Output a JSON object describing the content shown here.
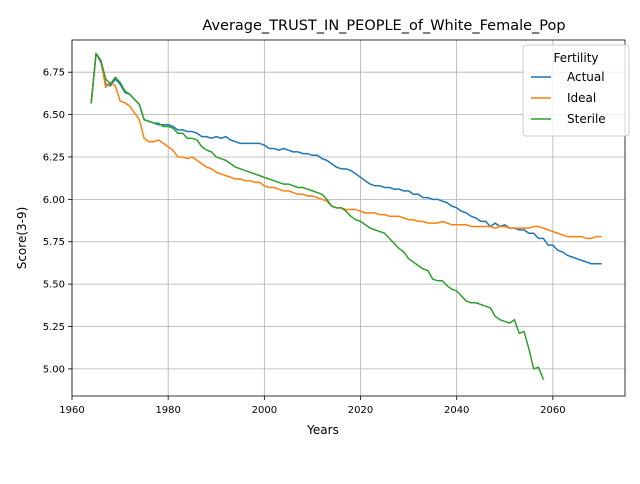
{
  "chart_data": {
    "type": "line",
    "title": "Average_TRUST_IN_PEOPLE_of_White_Female_Pop",
    "xlabel": "Years",
    "ylabel": "Score(3-9)",
    "xlim": [
      1960,
      2075
    ],
    "ylim": [
      4.84,
      6.94
    ],
    "xticks": [
      1960,
      1980,
      2000,
      2020,
      2040,
      2060
    ],
    "yticks": [
      5.0,
      5.25,
      5.5,
      5.75,
      6.0,
      6.25,
      6.5,
      6.75
    ],
    "xtick_labels": [
      "1960",
      "1980",
      "2000",
      "2020",
      "2040",
      "2060"
    ],
    "ytick_labels": [
      "5.00",
      "5.25",
      "5.50",
      "5.75",
      "6.00",
      "6.25",
      "6.50",
      "6.75"
    ],
    "grid": true,
    "legend": {
      "title": "Fertility",
      "position": "top-right"
    },
    "series": [
      {
        "name": "Actual",
        "color": "#1f77b4",
        "points": [
          [
            1964,
            6.57
          ],
          [
            1965,
            6.86
          ],
          [
            1966,
            6.81
          ],
          [
            1967,
            6.68
          ],
          [
            1968,
            6.67
          ],
          [
            1969,
            6.71
          ],
          [
            1970,
            6.68
          ],
          [
            1971,
            6.63
          ],
          [
            1972,
            6.62
          ],
          [
            1973,
            6.59
          ],
          [
            1974,
            6.56
          ],
          [
            1975,
            6.47
          ],
          [
            1976,
            6.46
          ],
          [
            1977,
            6.45
          ],
          [
            1978,
            6.44
          ],
          [
            1979,
            6.44
          ],
          [
            1980,
            6.44
          ],
          [
            1981,
            6.43
          ],
          [
            1982,
            6.41
          ],
          [
            1983,
            6.41
          ],
          [
            1984,
            6.4
          ],
          [
            1985,
            6.4
          ],
          [
            1986,
            6.39
          ],
          [
            1987,
            6.37
          ],
          [
            1988,
            6.37
          ],
          [
            1989,
            6.36
          ],
          [
            1990,
            6.37
          ],
          [
            1991,
            6.36
          ],
          [
            1992,
            6.37
          ],
          [
            1993,
            6.35
          ],
          [
            1994,
            6.34
          ],
          [
            1995,
            6.33
          ],
          [
            1996,
            6.33
          ],
          [
            1997,
            6.33
          ],
          [
            1998,
            6.33
          ],
          [
            1999,
            6.33
          ],
          [
            2000,
            6.32
          ],
          [
            2001,
            6.3
          ],
          [
            2002,
            6.3
          ],
          [
            2003,
            6.29
          ],
          [
            2004,
            6.3
          ],
          [
            2005,
            6.29
          ],
          [
            2006,
            6.28
          ],
          [
            2007,
            6.28
          ],
          [
            2008,
            6.27
          ],
          [
            2009,
            6.27
          ],
          [
            2010,
            6.26
          ],
          [
            2011,
            6.26
          ],
          [
            2012,
            6.24
          ],
          [
            2013,
            6.23
          ],
          [
            2014,
            6.21
          ],
          [
            2015,
            6.19
          ],
          [
            2016,
            6.18
          ],
          [
            2017,
            6.18
          ],
          [
            2018,
            6.17
          ],
          [
            2019,
            6.15
          ],
          [
            2020,
            6.13
          ],
          [
            2021,
            6.11
          ],
          [
            2022,
            6.09
          ],
          [
            2023,
            6.08
          ],
          [
            2024,
            6.08
          ],
          [
            2025,
            6.07
          ],
          [
            2026,
            6.07
          ],
          [
            2027,
            6.06
          ],
          [
            2028,
            6.06
          ],
          [
            2029,
            6.05
          ],
          [
            2030,
            6.05
          ],
          [
            2031,
            6.03
          ],
          [
            2032,
            6.03
          ],
          [
            2033,
            6.01
          ],
          [
            2034,
            6.01
          ],
          [
            2035,
            6.0
          ],
          [
            2036,
            6.0
          ],
          [
            2037,
            5.99
          ],
          [
            2038,
            5.98
          ],
          [
            2039,
            5.96
          ],
          [
            2040,
            5.95
          ],
          [
            2041,
            5.93
          ],
          [
            2042,
            5.92
          ],
          [
            2043,
            5.9
          ],
          [
            2044,
            5.89
          ],
          [
            2045,
            5.87
          ],
          [
            2046,
            5.87
          ],
          [
            2047,
            5.84
          ],
          [
            2048,
            5.86
          ],
          [
            2049,
            5.84
          ],
          [
            2050,
            5.85
          ],
          [
            2051,
            5.83
          ],
          [
            2052,
            5.83
          ],
          [
            2053,
            5.82
          ],
          [
            2054,
            5.82
          ],
          [
            2055,
            5.8
          ],
          [
            2056,
            5.8
          ],
          [
            2057,
            5.77
          ],
          [
            2058,
            5.77
          ],
          [
            2059,
            5.73
          ],
          [
            2060,
            5.73
          ],
          [
            2061,
            5.7
          ],
          [
            2062,
            5.69
          ],
          [
            2063,
            5.67
          ],
          [
            2064,
            5.66
          ],
          [
            2065,
            5.65
          ],
          [
            2066,
            5.64
          ],
          [
            2067,
            5.63
          ],
          [
            2068,
            5.62
          ],
          [
            2069,
            5.62
          ],
          [
            2070,
            5.62
          ]
        ]
      },
      {
        "name": "Ideal",
        "color": "#ff7f0e",
        "points": [
          [
            1964,
            6.57
          ],
          [
            1965,
            6.86
          ],
          [
            1966,
            6.82
          ],
          [
            1967,
            6.66
          ],
          [
            1968,
            6.69
          ],
          [
            1969,
            6.67
          ],
          [
            1970,
            6.58
          ],
          [
            1971,
            6.57
          ],
          [
            1972,
            6.55
          ],
          [
            1973,
            6.51
          ],
          [
            1974,
            6.47
          ],
          [
            1975,
            6.36
          ],
          [
            1976,
            6.34
          ],
          [
            1977,
            6.34
          ],
          [
            1978,
            6.35
          ],
          [
            1979,
            6.33
          ],
          [
            1980,
            6.31
          ],
          [
            1981,
            6.29
          ],
          [
            1982,
            6.25
          ],
          [
            1983,
            6.25
          ],
          [
            1984,
            6.24
          ],
          [
            1985,
            6.25
          ],
          [
            1986,
            6.23
          ],
          [
            1987,
            6.21
          ],
          [
            1988,
            6.19
          ],
          [
            1989,
            6.18
          ],
          [
            1990,
            6.16
          ],
          [
            1991,
            6.15
          ],
          [
            1992,
            6.14
          ],
          [
            1993,
            6.13
          ],
          [
            1994,
            6.12
          ],
          [
            1995,
            6.12
          ],
          [
            1996,
            6.11
          ],
          [
            1997,
            6.11
          ],
          [
            1998,
            6.1
          ],
          [
            1999,
            6.1
          ],
          [
            2000,
            6.08
          ],
          [
            2001,
            6.07
          ],
          [
            2002,
            6.07
          ],
          [
            2003,
            6.06
          ],
          [
            2004,
            6.05
          ],
          [
            2005,
            6.05
          ],
          [
            2006,
            6.04
          ],
          [
            2007,
            6.03
          ],
          [
            2008,
            6.03
          ],
          [
            2009,
            6.02
          ],
          [
            2010,
            6.02
          ],
          [
            2011,
            6.01
          ],
          [
            2012,
            6.0
          ],
          [
            2013,
            5.99
          ],
          [
            2014,
            5.96
          ],
          [
            2015,
            5.95
          ],
          [
            2016,
            5.95
          ],
          [
            2017,
            5.94
          ],
          [
            2018,
            5.94
          ],
          [
            2019,
            5.94
          ],
          [
            2020,
            5.93
          ],
          [
            2021,
            5.92
          ],
          [
            2022,
            5.92
          ],
          [
            2023,
            5.92
          ],
          [
            2024,
            5.91
          ],
          [
            2025,
            5.91
          ],
          [
            2026,
            5.9
          ],
          [
            2027,
            5.9
          ],
          [
            2028,
            5.9
          ],
          [
            2029,
            5.89
          ],
          [
            2030,
            5.88
          ],
          [
            2031,
            5.88
          ],
          [
            2032,
            5.87
          ],
          [
            2033,
            5.87
          ],
          [
            2034,
            5.86
          ],
          [
            2035,
            5.86
          ],
          [
            2036,
            5.86
          ],
          [
            2037,
            5.87
          ],
          [
            2038,
            5.86
          ],
          [
            2039,
            5.85
          ],
          [
            2040,
            5.85
          ],
          [
            2041,
            5.85
          ],
          [
            2042,
            5.85
          ],
          [
            2043,
            5.84
          ],
          [
            2044,
            5.84
          ],
          [
            2045,
            5.84
          ],
          [
            2046,
            5.84
          ],
          [
            2047,
            5.84
          ],
          [
            2048,
            5.83
          ],
          [
            2049,
            5.84
          ],
          [
            2050,
            5.84
          ],
          [
            2051,
            5.83
          ],
          [
            2052,
            5.83
          ],
          [
            2053,
            5.83
          ],
          [
            2054,
            5.83
          ],
          [
            2055,
            5.83
          ],
          [
            2056,
            5.84
          ],
          [
            2057,
            5.84
          ],
          [
            2058,
            5.83
          ],
          [
            2059,
            5.82
          ],
          [
            2060,
            5.81
          ],
          [
            2061,
            5.8
          ],
          [
            2062,
            5.79
          ],
          [
            2063,
            5.78
          ],
          [
            2064,
            5.78
          ],
          [
            2065,
            5.78
          ],
          [
            2066,
            5.78
          ],
          [
            2067,
            5.77
          ],
          [
            2068,
            5.77
          ],
          [
            2069,
            5.78
          ],
          [
            2070,
            5.78
          ]
        ]
      },
      {
        "name": "Sterile",
        "color": "#2ca02c",
        "points": [
          [
            1964,
            6.57
          ],
          [
            1965,
            6.86
          ],
          [
            1966,
            6.82
          ],
          [
            1967,
            6.71
          ],
          [
            1968,
            6.68
          ],
          [
            1969,
            6.72
          ],
          [
            1970,
            6.69
          ],
          [
            1971,
            6.64
          ],
          [
            1972,
            6.62
          ],
          [
            1973,
            6.59
          ],
          [
            1974,
            6.56
          ],
          [
            1975,
            6.47
          ],
          [
            1976,
            6.46
          ],
          [
            1977,
            6.45
          ],
          [
            1978,
            6.45
          ],
          [
            1979,
            6.43
          ],
          [
            1980,
            6.43
          ],
          [
            1981,
            6.42
          ],
          [
            1982,
            6.39
          ],
          [
            1983,
            6.39
          ],
          [
            1984,
            6.36
          ],
          [
            1985,
            6.36
          ],
          [
            1986,
            6.35
          ],
          [
            1987,
            6.31
          ],
          [
            1988,
            6.29
          ],
          [
            1989,
            6.28
          ],
          [
            1990,
            6.25
          ],
          [
            1991,
            6.24
          ],
          [
            1992,
            6.23
          ],
          [
            1993,
            6.21
          ],
          [
            1994,
            6.19
          ],
          [
            1995,
            6.18
          ],
          [
            1996,
            6.17
          ],
          [
            1997,
            6.16
          ],
          [
            1998,
            6.15
          ],
          [
            1999,
            6.14
          ],
          [
            2000,
            6.13
          ],
          [
            2001,
            6.12
          ],
          [
            2002,
            6.11
          ],
          [
            2003,
            6.1
          ],
          [
            2004,
            6.09
          ],
          [
            2005,
            6.09
          ],
          [
            2006,
            6.08
          ],
          [
            2007,
            6.07
          ],
          [
            2008,
            6.07
          ],
          [
            2009,
            6.06
          ],
          [
            2010,
            6.05
          ],
          [
            2011,
            6.04
          ],
          [
            2012,
            6.03
          ],
          [
            2013,
            6.0
          ],
          [
            2014,
            5.96
          ],
          [
            2015,
            5.95
          ],
          [
            2016,
            5.95
          ],
          [
            2017,
            5.93
          ],
          [
            2018,
            5.9
          ],
          [
            2019,
            5.88
          ],
          [
            2020,
            5.87
          ],
          [
            2021,
            5.85
          ],
          [
            2022,
            5.83
          ],
          [
            2023,
            5.82
          ],
          [
            2024,
            5.81
          ],
          [
            2025,
            5.8
          ],
          [
            2026,
            5.77
          ],
          [
            2027,
            5.74
          ],
          [
            2028,
            5.71
          ],
          [
            2029,
            5.69
          ],
          [
            2030,
            5.65
          ],
          [
            2031,
            5.63
          ],
          [
            2032,
            5.61
          ],
          [
            2033,
            5.59
          ],
          [
            2034,
            5.58
          ],
          [
            2035,
            5.53
          ],
          [
            2036,
            5.52
          ],
          [
            2037,
            5.52
          ],
          [
            2038,
            5.49
          ],
          [
            2039,
            5.47
          ],
          [
            2040,
            5.46
          ],
          [
            2041,
            5.43
          ],
          [
            2042,
            5.4
          ],
          [
            2043,
            5.39
          ],
          [
            2044,
            5.39
          ],
          [
            2045,
            5.38
          ],
          [
            2046,
            5.37
          ],
          [
            2047,
            5.36
          ],
          [
            2048,
            5.31
          ],
          [
            2049,
            5.29
          ],
          [
            2050,
            5.28
          ],
          [
            2051,
            5.27
          ],
          [
            2052,
            5.29
          ],
          [
            2053,
            5.21
          ],
          [
            2054,
            5.22
          ],
          [
            2055,
            5.12
          ],
          [
            2056,
            5.0
          ],
          [
            2057,
            5.01
          ],
          [
            2058,
            4.94
          ]
        ]
      }
    ]
  }
}
